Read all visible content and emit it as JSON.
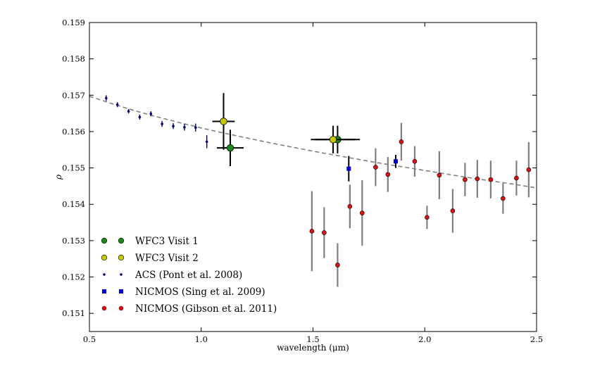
{
  "chart_data": {
    "type": "scatter",
    "xlabel": "wavelength (μm)",
    "ylabel": "ρ",
    "xlim": [
      0.5,
      2.5
    ],
    "ylim": [
      0.1505,
      0.159
    ],
    "x_ticks": [
      0.5,
      1.0,
      1.5,
      2.0,
      2.5
    ],
    "x_tick_labels": [
      "0.5",
      "1.0",
      "1.5",
      "2.0",
      "2.5"
    ],
    "y_ticks": [
      0.151,
      0.152,
      0.153,
      0.154,
      0.155,
      0.156,
      0.157,
      0.158,
      0.159
    ],
    "y_tick_labels": [
      "0.151",
      "0.152",
      "0.153",
      "0.154",
      "0.155",
      "0.156",
      "0.157",
      "0.158",
      "0.159"
    ],
    "grid": false,
    "legend_position": "lower-left",
    "model_curve": {
      "name": "model",
      "style": "dashed",
      "color": "#808080",
      "x": [
        0.5,
        0.6,
        0.7,
        0.8,
        0.9,
        1.0,
        1.1,
        1.2,
        1.3,
        1.4,
        1.5,
        1.6,
        1.7,
        1.8,
        1.9,
        2.0,
        2.1,
        2.2,
        2.3,
        2.4,
        2.5
      ],
      "y": [
        0.15697,
        0.15677,
        0.15658,
        0.15641,
        0.15625,
        0.1561,
        0.15596,
        0.15583,
        0.1557,
        0.15558,
        0.15546,
        0.15535,
        0.15524,
        0.15513,
        0.15503,
        0.15493,
        0.15483,
        0.15473,
        0.15464,
        0.15455,
        0.15445
      ]
    },
    "series": [
      {
        "name": "WFC3 Visit 1",
        "marker": "circle-large",
        "color": "#1a8a1a",
        "errcolor": "#000000",
        "points": [
          {
            "x": 1.13,
            "y": 0.15555,
            "yerr": 0.0005,
            "xerr": 0.06
          },
          {
            "x": 1.61,
            "y": 0.15578,
            "yerr": 0.00038,
            "xerr": 0.1
          }
        ]
      },
      {
        "name": "WFC3 Visit 2",
        "marker": "circle-large",
        "color": "#c8c800",
        "errcolor": "#000000",
        "points": [
          {
            "x": 1.1,
            "y": 0.15628,
            "yerr": 0.00078,
            "xerr": 0.05
          },
          {
            "x": 1.59,
            "y": 0.15578,
            "yerr": 0.00038,
            "xerr": 0.1
          }
        ]
      },
      {
        "name": "ACS (Pont et al. 2008)",
        "marker": "dot",
        "color": "#000080",
        "errcolor": "#000080",
        "points": [
          {
            "x": 0.575,
            "y": 0.15692,
            "yerr": 8e-05
          },
          {
            "x": 0.625,
            "y": 0.15674,
            "yerr": 7e-05
          },
          {
            "x": 0.675,
            "y": 0.15656,
            "yerr": 6e-05
          },
          {
            "x": 0.725,
            "y": 0.1564,
            "yerr": 7e-05
          },
          {
            "x": 0.775,
            "y": 0.15649,
            "yerr": 7e-05
          },
          {
            "x": 0.825,
            "y": 0.15621,
            "yerr": 8e-05
          },
          {
            "x": 0.875,
            "y": 0.15615,
            "yerr": 8e-05
          },
          {
            "x": 0.925,
            "y": 0.15612,
            "yerr": 9e-05
          },
          {
            "x": 0.975,
            "y": 0.15611,
            "yerr": 0.00011
          },
          {
            "x": 1.025,
            "y": 0.15572,
            "yerr": 0.00018
          }
        ]
      },
      {
        "name": "NICMOS (Sing et al. 2009)",
        "marker": "square",
        "color": "#0000cc",
        "errcolor": "#000000",
        "points": [
          {
            "x": 1.66,
            "y": 0.15498,
            "yerr": 0.00035
          },
          {
            "x": 1.87,
            "y": 0.15518,
            "yerr": 0.00018
          }
        ]
      },
      {
        "name": "NICMOS (Gibson et al. 2011)",
        "marker": "circle-small",
        "color": "#dd1111",
        "errcolor": "#7f7f7f",
        "points": [
          {
            "x": 1.495,
            "y": 0.15326,
            "yerr": 0.0011
          },
          {
            "x": 1.55,
            "y": 0.15322,
            "yerr": 0.0007
          },
          {
            "x": 1.61,
            "y": 0.15233,
            "yerr": 0.0006
          },
          {
            "x": 1.665,
            "y": 0.15394,
            "yerr": 0.0006
          },
          {
            "x": 1.72,
            "y": 0.15376,
            "yerr": 0.0009
          },
          {
            "x": 1.78,
            "y": 0.15502,
            "yerr": 0.00052
          },
          {
            "x": 1.835,
            "y": 0.15482,
            "yerr": 0.00048
          },
          {
            "x": 1.895,
            "y": 0.15572,
            "yerr": 0.00052
          },
          {
            "x": 1.955,
            "y": 0.15518,
            "yerr": 0.00042
          },
          {
            "x": 2.01,
            "y": 0.15364,
            "yerr": 0.00032
          },
          {
            "x": 2.065,
            "y": 0.1548,
            "yerr": 0.00066
          },
          {
            "x": 2.125,
            "y": 0.15382,
            "yerr": 0.0006
          },
          {
            "x": 2.18,
            "y": 0.15468,
            "yerr": 0.00046
          },
          {
            "x": 2.235,
            "y": 0.1547,
            "yerr": 0.00052
          },
          {
            "x": 2.295,
            "y": 0.15468,
            "yerr": 0.00052
          },
          {
            "x": 2.35,
            "y": 0.15416,
            "yerr": 0.00042
          },
          {
            "x": 2.41,
            "y": 0.15472,
            "yerr": 0.00048
          },
          {
            "x": 2.465,
            "y": 0.15495,
            "yerr": 0.00076
          }
        ]
      }
    ]
  }
}
